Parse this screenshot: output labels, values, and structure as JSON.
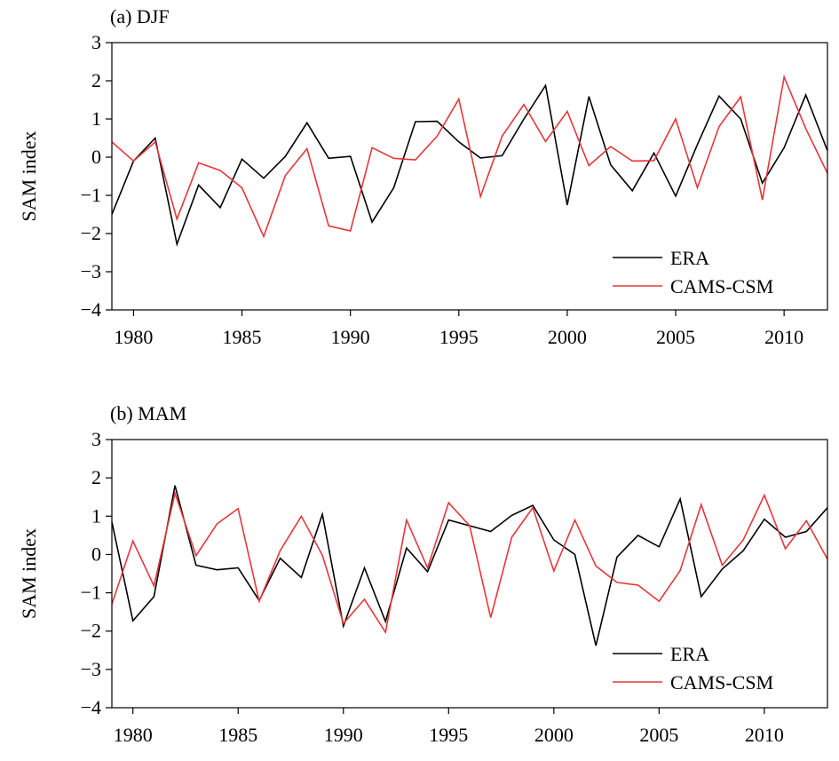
{
  "chart_data": [
    {
      "type": "line",
      "panel_label": "(a) DJF",
      "ylabel": "SAM index",
      "xlabel": "",
      "ylim": [
        -4,
        3
      ],
      "xlim": [
        1979,
        2012
      ],
      "yticks": [
        -4,
        -3,
        -2,
        -1,
        0,
        1,
        2,
        3
      ],
      "ytick_labels": [
        "−4",
        "−3",
        "−2",
        "−1",
        "0",
        "1",
        "2",
        "3"
      ],
      "xticks": [
        1980,
        1985,
        1990,
        1995,
        2000,
        2005,
        2010
      ],
      "xtick_labels": [
        "1980",
        "1985",
        "1990",
        "1995",
        "2000",
        "2005",
        "2010"
      ],
      "legend_position": "lower-right",
      "x": [
        1979,
        1980,
        1981,
        1982,
        1983,
        1984,
        1985,
        1986,
        1987,
        1988,
        1989,
        1990,
        1991,
        1992,
        1993,
        1994,
        1995,
        1996,
        1997,
        1998,
        1999,
        2000,
        2001,
        2002,
        2003,
        2004,
        2005,
        2006,
        2007,
        2008,
        2009,
        2010,
        2011,
        2012
      ],
      "series": [
        {
          "name": "ERA",
          "color": "#000000",
          "values": [
            -1.5,
            -0.1,
            0.5,
            -2.28,
            -0.73,
            -1.32,
            -0.05,
            -0.55,
            0.02,
            0.9,
            -0.03,
            0.02,
            -1.7,
            -0.8,
            0.93,
            0.94,
            0.4,
            -0.02,
            0.04,
            1.0,
            1.88,
            -1.25,
            1.59,
            -0.2,
            -0.88,
            0.11,
            -1.02,
            0.33,
            1.6,
            1.0,
            -0.68,
            0.25,
            1.63,
            0.17
          ]
        },
        {
          "name": "CAMS-CSM",
          "color": "#e8363a",
          "values": [
            0.4,
            -0.1,
            0.4,
            -1.62,
            -0.15,
            -0.35,
            -0.8,
            -2.08,
            -0.48,
            0.22,
            -1.8,
            -1.93,
            0.25,
            -0.03,
            -0.07,
            0.55,
            1.52,
            -1.03,
            0.55,
            1.38,
            0.41,
            1.2,
            -0.22,
            0.28,
            -0.1,
            -0.09,
            1.0,
            -0.8,
            0.8,
            1.58,
            -1.12,
            2.1,
            0.75,
            -0.42
          ]
        }
      ]
    },
    {
      "type": "line",
      "panel_label": "(b) MAM",
      "ylabel": "SAM index",
      "xlabel": "",
      "ylim": [
        -4,
        3
      ],
      "xlim": [
        1979,
        2013
      ],
      "yticks": [
        -4,
        -3,
        -2,
        -1,
        0,
        1,
        2,
        3
      ],
      "ytick_labels": [
        "−4",
        "−3",
        "−2",
        "−1",
        "0",
        "1",
        "2",
        "3"
      ],
      "xticks": [
        1980,
        1985,
        1990,
        1995,
        2000,
        2005,
        2010
      ],
      "xtick_labels": [
        "1980",
        "1985",
        "1990",
        "1995",
        "2000",
        "2005",
        "2010"
      ],
      "legend_position": "lower-right",
      "x": [
        1979,
        1980,
        1981,
        1982,
        1983,
        1984,
        1985,
        1986,
        1987,
        1988,
        1989,
        1990,
        1991,
        1992,
        1993,
        1994,
        1995,
        1996,
        1997,
        1998,
        1999,
        2000,
        2001,
        2002,
        2003,
        2004,
        2005,
        2006,
        2007,
        2008,
        2009,
        2010,
        2011,
        2012,
        2013
      ],
      "series": [
        {
          "name": "ERA",
          "color": "#000000",
          "values": [
            0.85,
            -1.73,
            -1.1,
            1.8,
            -0.28,
            -0.4,
            -0.35,
            -1.2,
            -0.1,
            -0.6,
            1.05,
            -1.87,
            -0.35,
            -1.75,
            0.17,
            -0.45,
            0.9,
            0.75,
            0.6,
            1.02,
            1.28,
            0.38,
            0.0,
            -2.38,
            -0.07,
            0.5,
            0.2,
            1.45,
            -1.1,
            -0.38,
            0.1,
            0.92,
            0.45,
            0.6,
            1.22
          ]
        },
        {
          "name": "CAMS-CSM",
          "color": "#e8363a",
          "values": [
            -1.3,
            0.35,
            -0.82,
            1.6,
            -0.03,
            0.8,
            1.2,
            -1.22,
            0.1,
            1.0,
            -0.02,
            -1.8,
            -1.17,
            -2.03,
            0.9,
            -0.35,
            1.35,
            0.75,
            -1.65,
            0.45,
            1.22,
            -0.43,
            0.9,
            -0.3,
            -0.73,
            -0.8,
            -1.22,
            -0.42,
            1.3,
            -0.28,
            0.38,
            1.55,
            0.15,
            0.88,
            -0.12
          ]
        }
      ]
    }
  ]
}
